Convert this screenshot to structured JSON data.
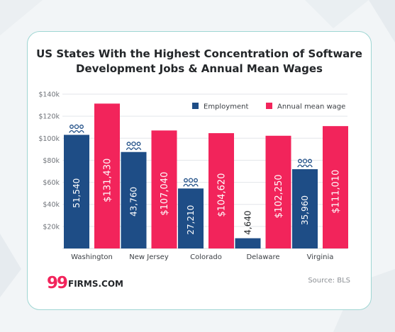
{
  "chart_data": {
    "type": "bar",
    "title": "US States With the Highest Concentration of Software Development Jobs & Annual Mean Wages",
    "title_lines": [
      "US States With the Highest Concentration of Software",
      "Development Jobs & Annual Mean Wages"
    ],
    "categories": [
      "Washington",
      "New Jersey",
      "Colorado",
      "Delaware",
      "Virginia"
    ],
    "series": [
      {
        "name": "Employment",
        "color": "#1e4d86",
        "values": [
          51540,
          43760,
          27210,
          4640,
          35960
        ],
        "labels": [
          "51,540",
          "43,760",
          "27,210",
          "4,640",
          "35,960"
        ],
        "scale_factor": 2
      },
      {
        "name": "Annual mean wage",
        "color": "#f2245b",
        "values": [
          131430,
          107040,
          104620,
          102250,
          111010
        ],
        "labels": [
          "$131,430",
          "$107,040",
          "$104,620",
          "$102,250",
          "$111,010"
        ]
      }
    ],
    "y_ticks": [
      20000,
      40000,
      60000,
      80000,
      100000,
      120000,
      140000
    ],
    "y_tick_labels": [
      "$20k",
      "$40k",
      "$60k",
      "$80k",
      "$100k",
      "$120k",
      "$140k"
    ],
    "ylim": [
      0,
      140000
    ],
    "grid": true,
    "legend_position": "top-right",
    "icon_color": "#1e4d86",
    "people_icons_on": [
      "Washington",
      "New Jersey",
      "Colorado",
      "Virginia"
    ]
  },
  "brand": {
    "number": "99",
    "name": "FIRMS.COM",
    "number_color": "#f2245b",
    "name_color": "#232629"
  },
  "source": "Source: BLS",
  "colors": {
    "card_border": "#9fd6d3",
    "grid": "#e3e6ea",
    "tick_text": "#6f7379"
  }
}
